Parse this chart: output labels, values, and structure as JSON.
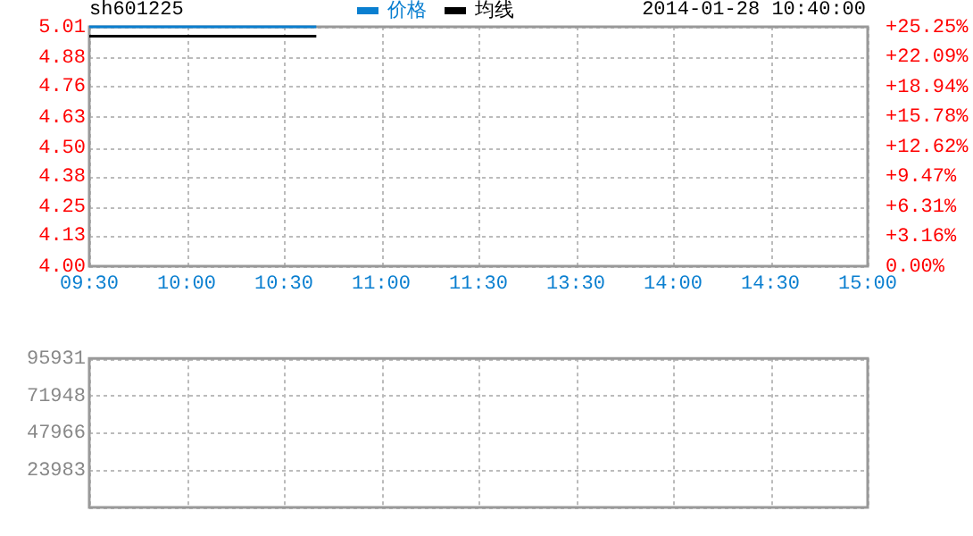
{
  "chart_data": [
    {
      "type": "line",
      "title": "sh601225",
      "subtitle": "2014-01-28 10:40:00",
      "categories": [
        "09:30",
        null,
        null,
        "10:00",
        null,
        null,
        "10:30",
        null,
        null,
        "11:00",
        null,
        null,
        "11:30",
        null,
        null,
        "13:30",
        null,
        null,
        "14:00",
        null,
        null,
        "14:30",
        null,
        null,
        "15:00"
      ],
      "series": [
        {
          "name": "价格",
          "color": "#0a7fd0",
          "values": [
            5.01,
            5.01,
            5.01,
            5.01,
            5.01,
            5.01,
            5.01,
            5.01,
            null,
            null,
            null,
            null,
            null,
            null,
            null,
            null,
            null,
            null,
            null,
            null,
            null,
            null,
            null,
            null,
            null
          ]
        },
        {
          "name": "均线",
          "color": "#000000",
          "values": [
            4.97,
            4.97,
            4.97,
            4.97,
            4.97,
            4.97,
            4.97,
            4.97,
            null,
            null,
            null,
            null,
            null,
            null,
            null,
            null,
            null,
            null,
            null,
            null,
            null,
            null,
            null,
            null,
            null
          ]
        }
      ],
      "ylim": [
        4,
        5.01
      ],
      "yticks": [
        {
          "value": 4,
          "label": "4.00"
        },
        4.13,
        4.25,
        4.38,
        {
          "value": 4.5,
          "label": "4.50"
        },
        4.63,
        4.76,
        4.88,
        5.01
      ],
      "y2lim": [
        0,
        25.25
      ],
      "y2ticks": [
        {
          "value": 0,
          "label": "0.00%"
        },
        {
          "value": 3.16,
          "label": "+3.16%"
        },
        {
          "value": 6.31,
          "label": "+6.31%"
        },
        {
          "value": 9.47,
          "label": "+9.47%"
        },
        {
          "value": 12.62,
          "label": "+12.62%"
        },
        {
          "value": 15.78,
          "label": "+15.78%"
        },
        {
          "value": 18.94,
          "label": "+18.94%"
        },
        {
          "value": 22.09,
          "label": "+22.09%"
        },
        {
          "value": 25.25,
          "label": "+25.25%"
        }
      ],
      "grid": true,
      "legend": "top",
      "marker": "none",
      "line_style": "solid"
    },
    {
      "type": "bar",
      "categories": [
        null,
        null,
        null,
        null,
        null,
        null,
        null,
        null,
        null,
        null,
        null,
        null,
        null,
        null,
        null,
        null,
        null,
        null,
        null,
        null,
        null,
        null,
        null,
        null,
        null
      ],
      "ylim": [
        0,
        95931
      ],
      "yticks": [
        {
          "value": 0,
          "label": null
        },
        23983,
        47966,
        71948,
        95931
      ],
      "grid": true,
      "tick_labels": "y"
    }
  ]
}
